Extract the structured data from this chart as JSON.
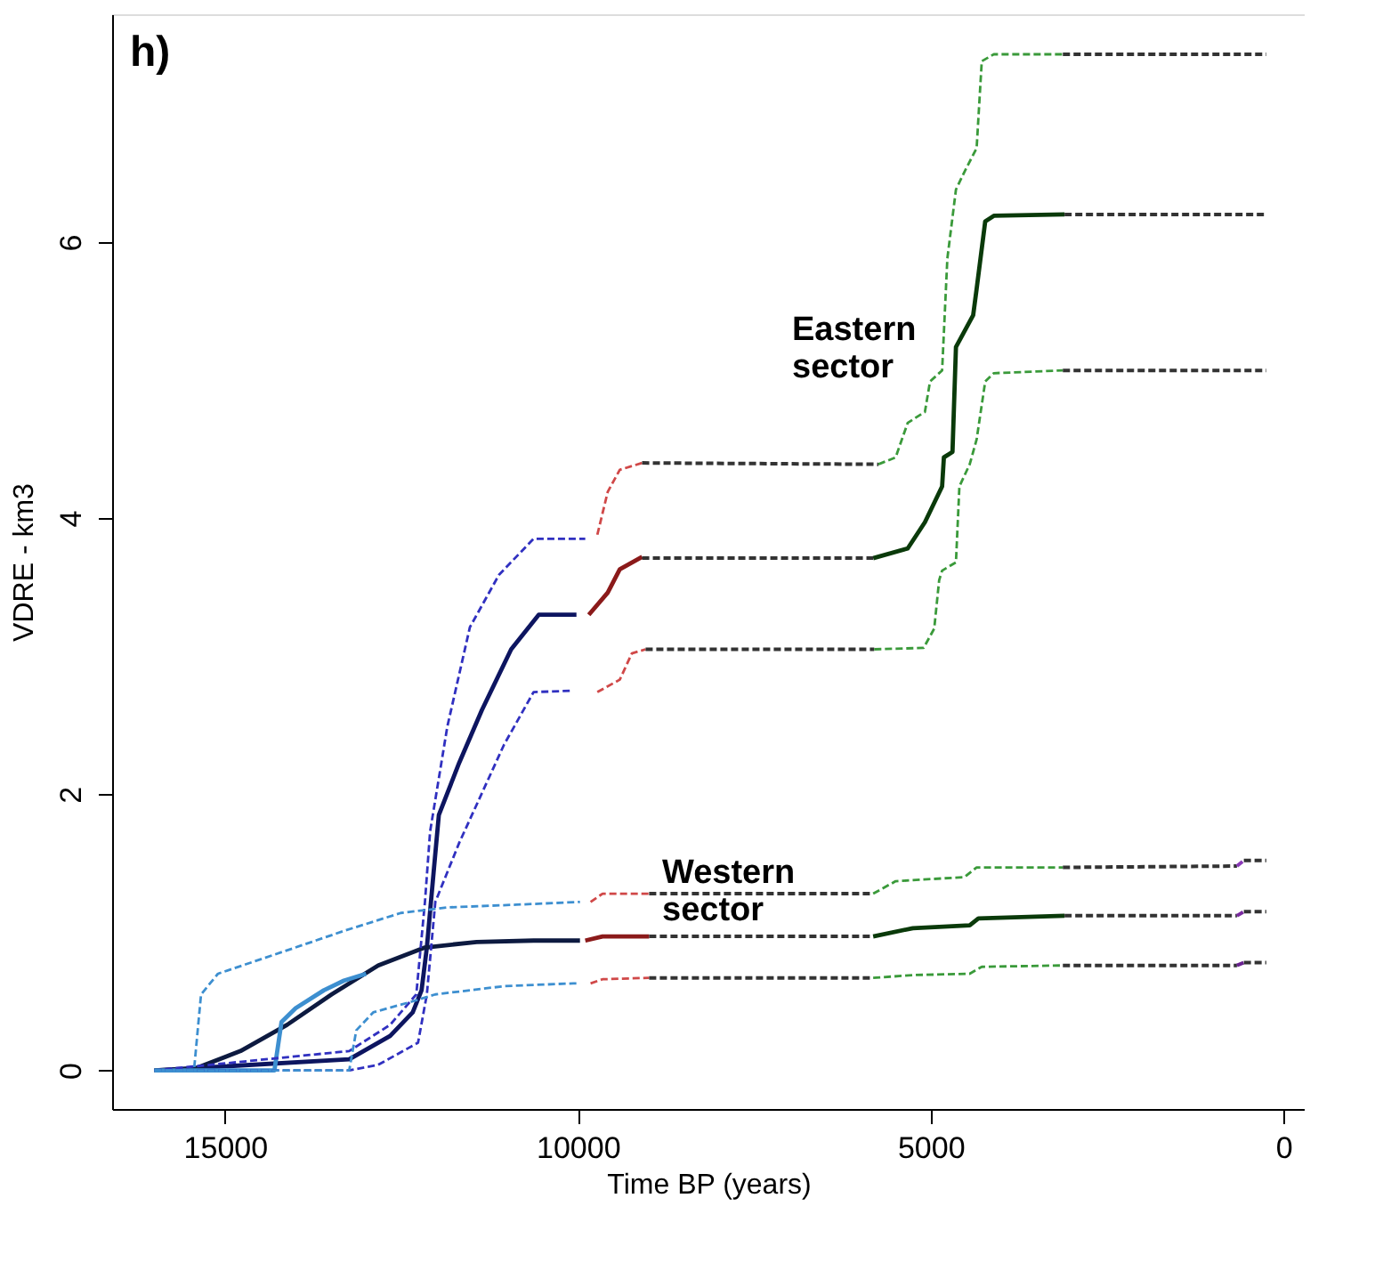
{
  "chart_data": {
    "type": "line",
    "xlabel": "Time BP (years)",
    "ylabel": "VDRE - km3",
    "xlim": [
      16600,
      -300
    ],
    "ylim": [
      -0.28,
      7.65
    ],
    "xticks": [
      15000,
      10000,
      5000,
      0
    ],
    "yticks": [
      0,
      2,
      4,
      6
    ],
    "grid": false,
    "marker": "none",
    "annotations": [
      "h)",
      "Eastern sector",
      "Western sector"
    ],
    "series": [
      {
        "color": "#0d1560",
        "line_style": "solid",
        "x": [
          16000,
          13240,
          12660,
          12340,
          12215,
          12140,
          12045,
          11970,
          11680,
          11360,
          10945,
          10555,
          10020
        ],
        "values": [
          0,
          0.08,
          0.25,
          0.42,
          0.58,
          0.89,
          1.43,
          1.85,
          2.23,
          2.61,
          3.05,
          3.3,
          3.3
        ]
      },
      {
        "color": "#8b1a1a",
        "line_style": "solid",
        "x": [
          9845,
          9577,
          9406,
          9089
        ],
        "values": [
          3.3,
          3.46,
          3.63,
          3.72
        ]
      },
      {
        "color": "#333333",
        "line_style": "dashed",
        "x": [
          9089,
          5815
        ],
        "values": [
          3.71,
          3.71
        ]
      },
      {
        "color": "#0a3a0a",
        "line_style": "solid",
        "x": [
          5815,
          5326,
          5082,
          4838,
          4813,
          4691,
          4642,
          4398,
          4349,
          4227,
          4105,
          3103
        ],
        "values": [
          3.71,
          3.78,
          3.97,
          4.23,
          4.44,
          4.48,
          5.24,
          5.47,
          5.66,
          6.15,
          6.19,
          6.2
        ]
      },
      {
        "color": "#333333",
        "line_style": "dashed",
        "x": [
          3103,
          244
        ],
        "values": [
          6.2,
          6.2
        ]
      },
      {
        "color": "#3030c0",
        "line_style": "dashed",
        "x": [
          16000,
          13240,
          12660,
          12290,
          12167,
          12094,
          11850,
          11530,
          11117,
          10628,
          9895
        ],
        "values": [
          0,
          0.14,
          0.33,
          0.55,
          1.22,
          1.73,
          2.49,
          3.21,
          3.59,
          3.85,
          3.85
        ]
      },
      {
        "color": "#d04848",
        "line_style": "dashed",
        "x": [
          9724,
          9577,
          9406,
          9089
        ],
        "values": [
          3.88,
          4.19,
          4.35,
          4.4
        ]
      },
      {
        "color": "#333333",
        "line_style": "dashed",
        "x": [
          9089,
          5741
        ],
        "values": [
          4.4,
          4.39
        ]
      },
      {
        "color": "#3a9a3a",
        "line_style": "dashed",
        "x": [
          5741,
          5497,
          5326,
          5082,
          5009,
          4838,
          4764,
          4642,
          4520,
          4349,
          4276,
          4105,
          3127
        ],
        "values": [
          4.39,
          4.44,
          4.69,
          4.77,
          4.99,
          5.07,
          5.88,
          6.38,
          6.51,
          6.68,
          7.31,
          7.36,
          7.36
        ]
      },
      {
        "color": "#333333",
        "line_style": "dashed",
        "x": [
          3127,
          244
        ],
        "values": [
          7.36,
          7.36
        ]
      },
      {
        "color": "#3030c0",
        "line_style": "dashed",
        "x": [
          16000,
          13240,
          12830,
          12265,
          12140,
          12020,
          11680,
          11045,
          10628,
          10066
        ],
        "values": [
          0,
          0,
          0.04,
          0.2,
          0.55,
          1.22,
          1.65,
          2.36,
          2.74,
          2.75
        ]
      },
      {
        "color": "#d04848",
        "line_style": "dashed",
        "x": [
          9724,
          9406,
          9235,
          9040
        ],
        "values": [
          2.74,
          2.83,
          3.02,
          3.05
        ]
      },
      {
        "color": "#333333",
        "line_style": "dashed",
        "x": [
          9040,
          5800
        ],
        "values": [
          3.05,
          3.05
        ]
      },
      {
        "color": "#3a9a3a",
        "line_style": "dashed",
        "x": [
          5800,
          5100,
          4950,
          4880,
          4838,
          4642,
          4593,
          4447,
          4349,
          4227,
          4105,
          3127
        ],
        "values": [
          3.05,
          3.06,
          3.2,
          3.55,
          3.62,
          3.68,
          4.23,
          4.39,
          4.57,
          4.99,
          5.05,
          5.07
        ]
      },
      {
        "color": "#333333",
        "line_style": "dashed",
        "x": [
          3127,
          244
        ],
        "values": [
          5.07,
          5.07
        ]
      },
      {
        "color": "#0d1a40",
        "line_style": "solid",
        "x": [
          16000,
          15440,
          14780,
          14120,
          13490,
          12830,
          12167,
          11434,
          10628,
          9970
        ],
        "values": [
          0,
          0.01,
          0.14,
          0.33,
          0.55,
          0.76,
          0.89,
          0.93,
          0.94,
          0.94
        ]
      },
      {
        "color": "#3d8fd0",
        "line_style": "solid",
        "x": [
          16000,
          14300,
          14200,
          14000,
          13600,
          13315,
          13000
        ],
        "values": [
          0,
          0,
          0.35,
          0.45,
          0.58,
          0.65,
          0.7
        ]
      },
      {
        "color": "#8b1a1a",
        "line_style": "solid",
        "x": [
          9895,
          9650,
          8990
        ],
        "values": [
          0.94,
          0.97,
          0.97
        ]
      },
      {
        "color": "#333333",
        "line_style": "dashed",
        "x": [
          8990,
          5815
        ],
        "values": [
          0.97,
          0.97
        ]
      },
      {
        "color": "#0a3a0a",
        "line_style": "solid",
        "x": [
          5815,
          5253,
          4447,
          4324,
          3103
        ],
        "values": [
          0.97,
          1.03,
          1.05,
          1.1,
          1.12
        ]
      },
      {
        "color": "#333333",
        "line_style": "dashed",
        "x": [
          3103,
          660
        ],
        "values": [
          1.12,
          1.12
        ]
      },
      {
        "color": "#7a2aa0",
        "line_style": "dashed",
        "x": [
          660,
          562
        ],
        "values": [
          1.12,
          1.15
        ]
      },
      {
        "color": "#333333",
        "line_style": "dashed",
        "x": [
          562,
          244
        ],
        "values": [
          1.15,
          1.15
        ]
      },
      {
        "color": "#3d8fd0",
        "line_style": "dashed",
        "x": [
          16000,
          15440,
          15340,
          15100,
          14290,
          13315,
          12510,
          11850,
          10870,
          9970
        ],
        "values": [
          0,
          0,
          0.55,
          0.7,
          0.84,
          1.01,
          1.14,
          1.18,
          1.2,
          1.22
        ]
      },
      {
        "color": "#d04848",
        "line_style": "dashed",
        "x": [
          9820,
          9650,
          8990
        ],
        "values": [
          1.22,
          1.28,
          1.28
        ]
      },
      {
        "color": "#333333",
        "line_style": "dashed",
        "x": [
          8990,
          5815
        ],
        "values": [
          1.28,
          1.28
        ]
      },
      {
        "color": "#3a9a3a",
        "line_style": "dashed",
        "x": [
          5815,
          5497,
          4520,
          4349,
          3127
        ],
        "values": [
          1.28,
          1.37,
          1.4,
          1.47,
          1.47
        ]
      },
      {
        "color": "#333333",
        "line_style": "dashed",
        "x": [
          3127,
          660
        ],
        "values": [
          1.47,
          1.48
        ]
      },
      {
        "color": "#8a3ab8",
        "line_style": "dashed",
        "x": [
          660,
          562
        ],
        "values": [
          1.48,
          1.52
        ]
      },
      {
        "color": "#333333",
        "line_style": "dashed",
        "x": [
          562,
          244
        ],
        "values": [
          1.52,
          1.52
        ]
      },
      {
        "color": "#3d8fd0",
        "line_style": "dashed",
        "x": [
          16000,
          13240,
          13140,
          12900,
          12340,
          12020,
          11045,
          10066,
          9970
        ],
        "values": [
          0,
          0,
          0.29,
          0.42,
          0.5,
          0.55,
          0.61,
          0.63,
          0.63
        ]
      },
      {
        "color": "#d04848",
        "line_style": "dashed",
        "x": [
          9820,
          9650,
          8990
        ],
        "values": [
          0.63,
          0.66,
          0.67
        ]
      },
      {
        "color": "#333333",
        "line_style": "dashed",
        "x": [
          8990,
          5815
        ],
        "values": [
          0.67,
          0.67
        ]
      },
      {
        "color": "#3a9a3a",
        "line_style": "dashed",
        "x": [
          5815,
          5253,
          4447,
          4276,
          3127
        ],
        "values": [
          0.67,
          0.69,
          0.7,
          0.75,
          0.76
        ]
      },
      {
        "color": "#333333",
        "line_style": "dashed",
        "x": [
          3127,
          660
        ],
        "values": [
          0.76,
          0.76
        ]
      },
      {
        "color": "#6a2290",
        "line_style": "dashed",
        "x": [
          660,
          562
        ],
        "values": [
          0.76,
          0.78
        ]
      },
      {
        "color": "#333333",
        "line_style": "dashed",
        "x": [
          562,
          244
        ],
        "values": [
          0.78,
          0.78
        ]
      }
    ]
  }
}
